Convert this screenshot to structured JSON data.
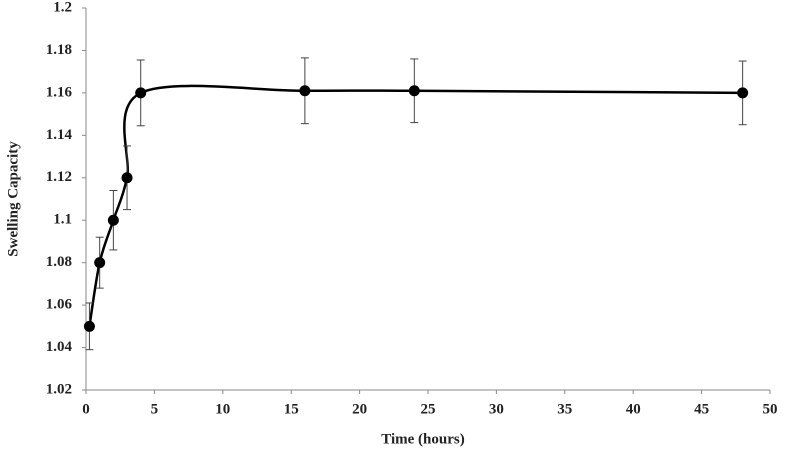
{
  "chart_data": {
    "type": "line",
    "x_label": "Time (hours)",
    "y_label": "Swelling Capacity",
    "x": [
      0.25,
      1,
      2,
      3,
      4,
      16,
      24,
      48
    ],
    "series": [
      {
        "color": "#000000",
        "values": [
          1.05,
          1.08,
          1.1,
          1.12,
          1.16,
          1.161,
          1.161,
          1.16
        ],
        "errors": [
          0.011,
          0.012,
          0.014,
          0.015,
          0.0155,
          0.0155,
          0.015,
          0.015
        ]
      }
    ],
    "xlim": [
      0,
      50
    ],
    "xticks": [
      0,
      5,
      10,
      15,
      20,
      25,
      30,
      35,
      40,
      45,
      50
    ],
    "ylim": [
      1.02,
      1.2
    ],
    "yticks": [
      1.02,
      1.04,
      1.06,
      1.08,
      1.1,
      1.12,
      1.14,
      1.16,
      1.18,
      1.2
    ],
    "grid": false,
    "smooth": true
  }
}
